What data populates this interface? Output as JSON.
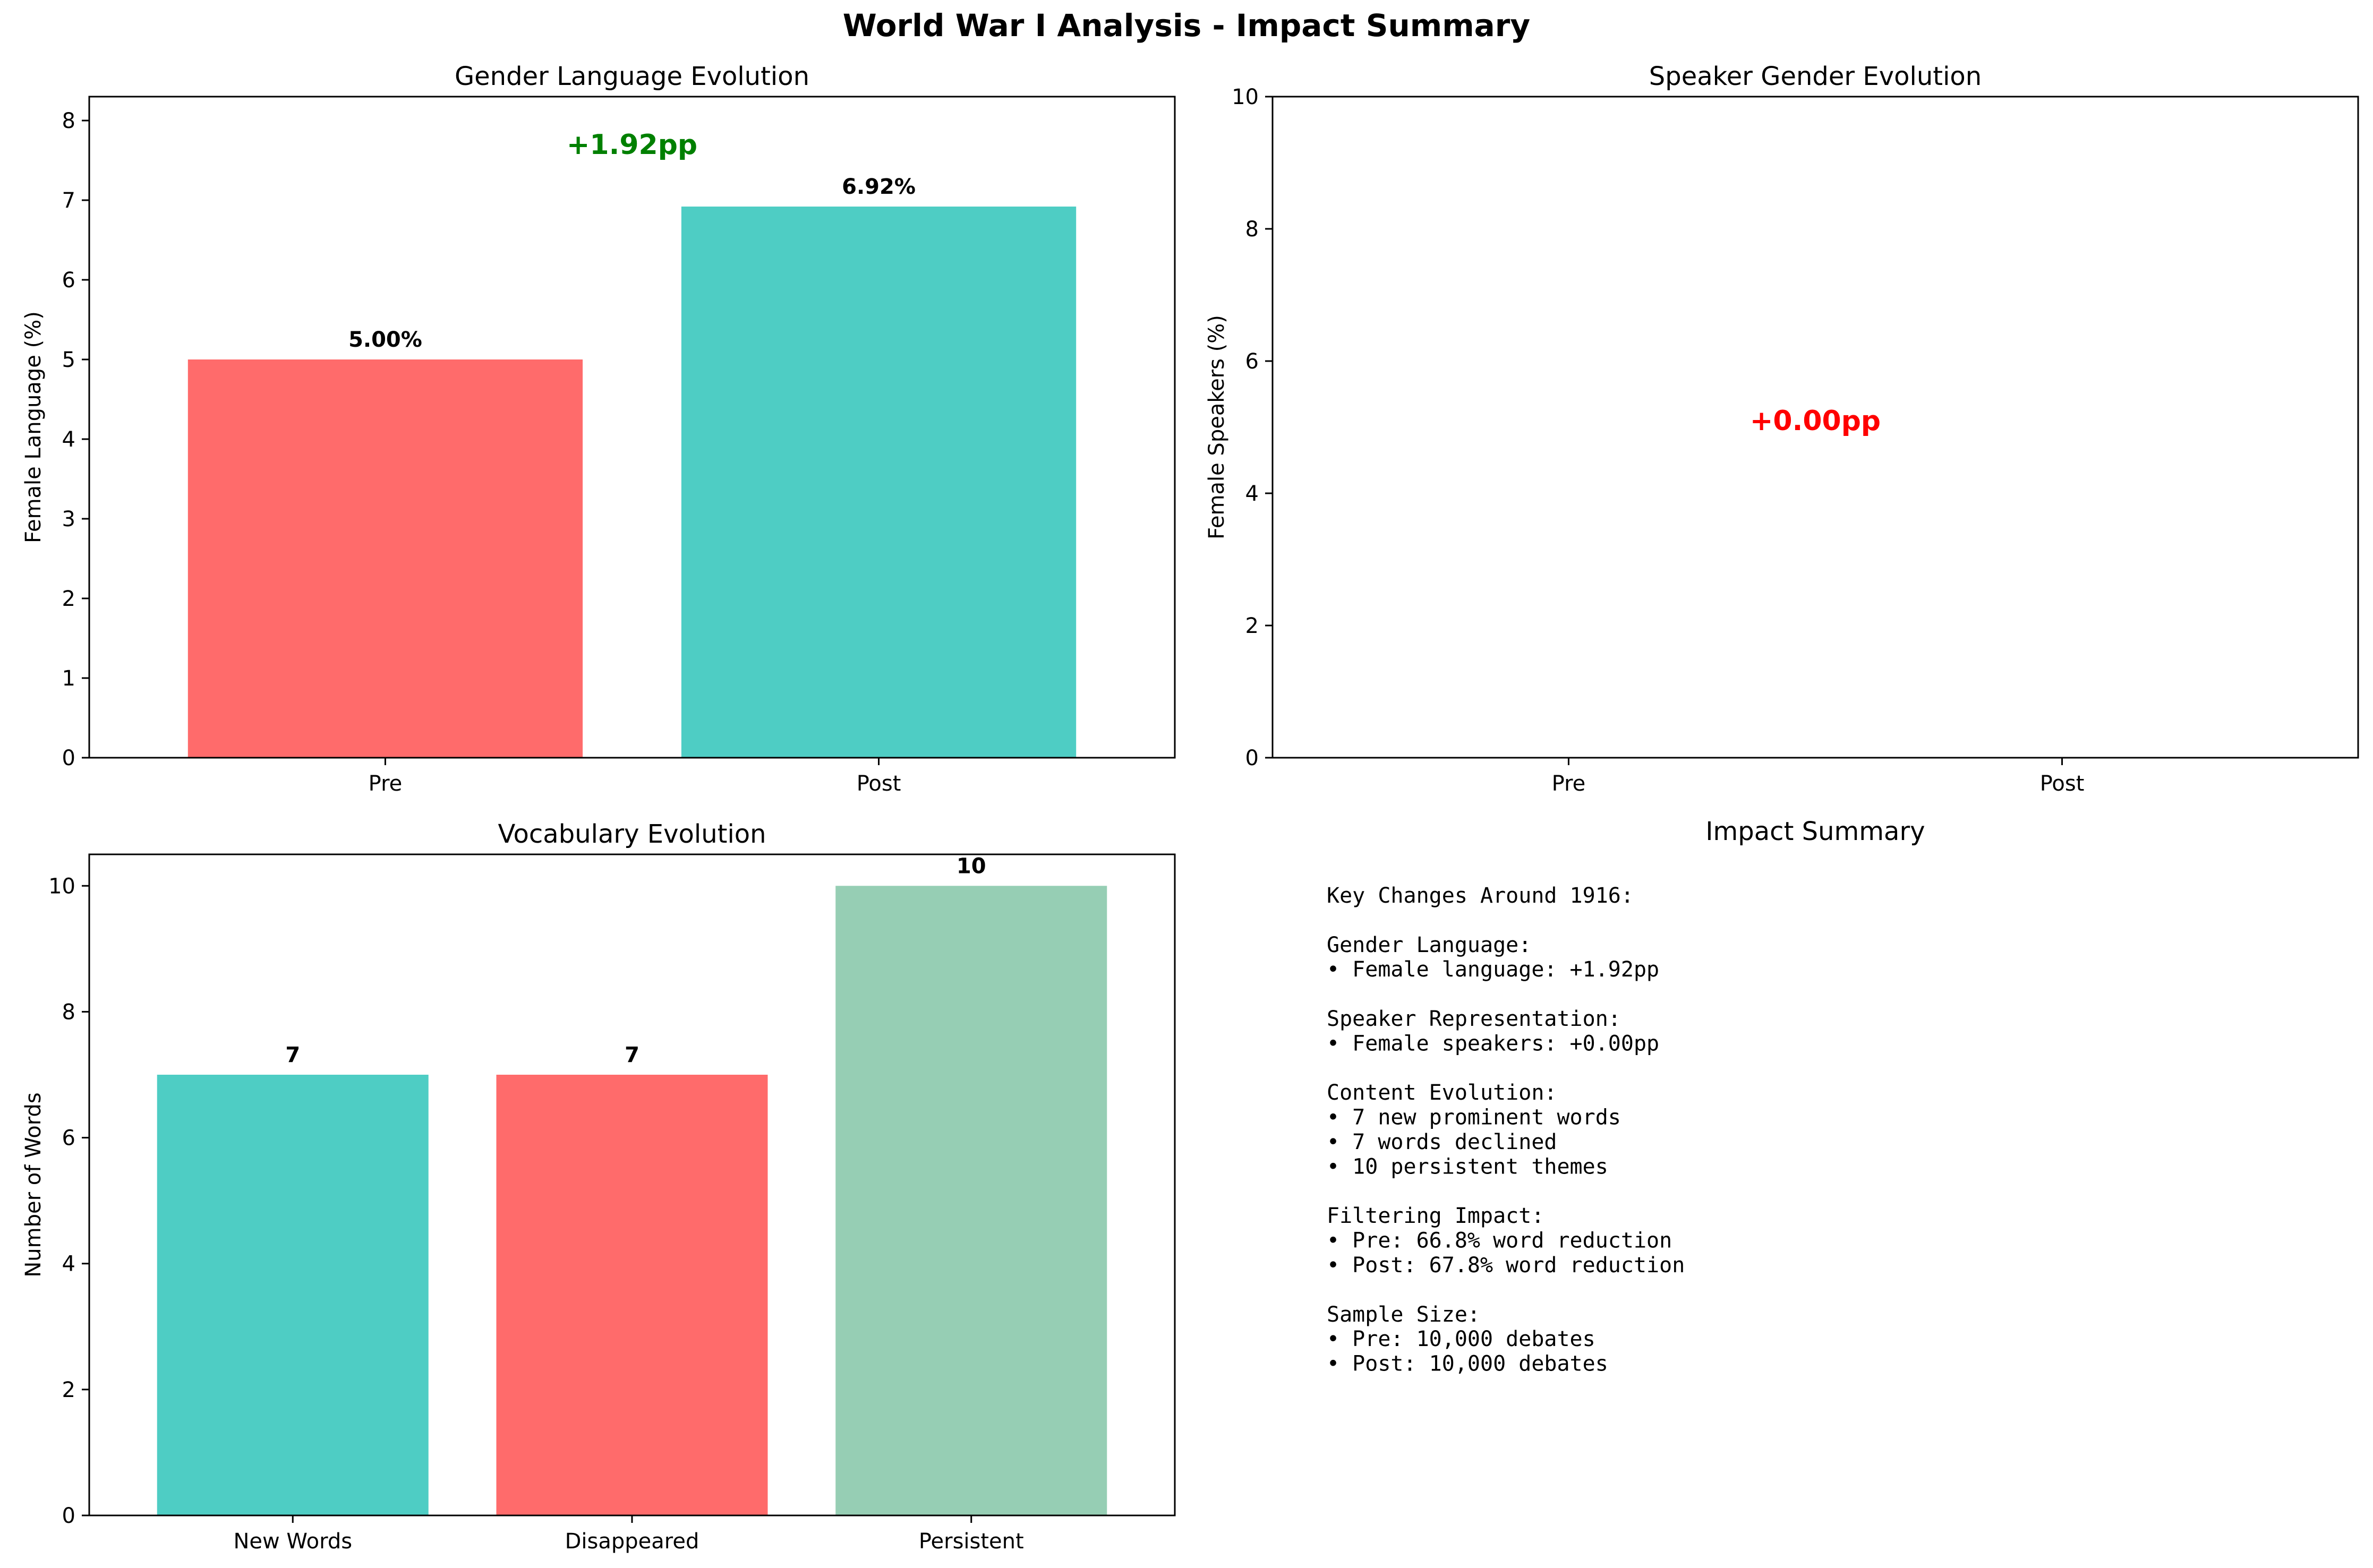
{
  "figure": {
    "title": "World War I Analysis - Impact Summary"
  },
  "chart_data": [
    {
      "type": "bar",
      "title": "Gender Language Evolution",
      "xlabel": "",
      "ylabel": "Female Language (%)",
      "categories": [
        "Pre",
        "Post"
      ],
      "values": [
        5.0,
        6.92
      ],
      "value_labels": [
        "5.00%",
        "6.92%"
      ],
      "colors": [
        "#ff6b6b",
        "#4ecdc4"
      ],
      "ylim": [
        0,
        8.3
      ],
      "yticks": [
        0,
        1,
        2,
        3,
        4,
        5,
        6,
        7,
        8
      ],
      "annotation": {
        "text": "+1.92pp",
        "color": "#008000",
        "x": 0.5,
        "y": 7.7
      }
    },
    {
      "type": "bar",
      "title": "Speaker Gender Evolution",
      "xlabel": "",
      "ylabel": "Female Speakers (%)",
      "categories": [
        "Pre",
        "Post"
      ],
      "values": [
        0,
        0
      ],
      "colors": [
        "#ff6b6b",
        "#4ecdc4"
      ],
      "ylim": [
        0,
        10
      ],
      "yticks": [
        0,
        2,
        4,
        6,
        8,
        10
      ],
      "annotation": {
        "text": "+0.00pp",
        "color": "#ff0000",
        "x": 0.5,
        "y": 5.1
      }
    },
    {
      "type": "bar",
      "title": "Vocabulary Evolution",
      "xlabel": "",
      "ylabel": "Number of Words",
      "categories": [
        "New Words",
        "Disappeared",
        "Persistent"
      ],
      "values": [
        7,
        7,
        10
      ],
      "value_labels": [
        "7",
        "7",
        "10"
      ],
      "colors": [
        "#4ecdc4",
        "#ff6b6b",
        "#96ceb4"
      ],
      "ylim": [
        0,
        10.5
      ],
      "yticks": [
        0,
        2,
        4,
        6,
        8,
        10
      ]
    }
  ],
  "summary": {
    "title": "Impact Summary",
    "lines": [
      "Key Changes Around 1916:",
      "",
      "Gender Language:",
      "• Female language: +1.92pp",
      "",
      "Speaker Representation:",
      "• Female speakers: +0.00pp",
      "",
      "Content Evolution:",
      "• 7 new prominent words",
      "• 7 words declined",
      "• 10 persistent themes",
      "",
      "Filtering Impact:",
      "• Pre: 66.8% word reduction",
      "• Post: 67.8% word reduction",
      "",
      "Sample Size:",
      "• Pre: 10,000 debates",
      "• Post: 10,000 debates"
    ]
  }
}
